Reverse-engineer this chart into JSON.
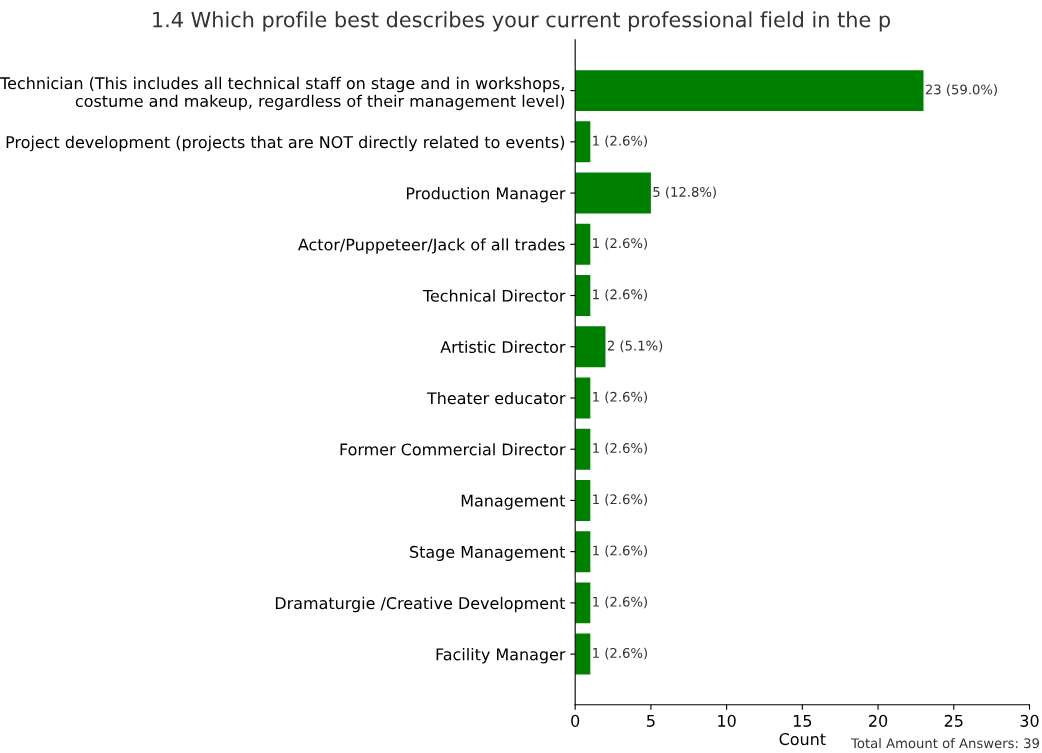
{
  "chart_data": {
    "type": "bar",
    "orientation": "horizontal",
    "title": "1.4 Which profile best describes your current professional field in the p",
    "xlabel": "Count",
    "categories": [
      "Technician (This includes all technical staff on stage and in workshops,\ncostume and makeup, regardless of their management level)",
      "Project development (projects that are NOT directly related to events)",
      "Production Manager",
      "Actor/Puppeteer/Jack of all trades",
      "Technical Director",
      "Artistic Director",
      "Theater educator",
      "Former Commercial Director",
      "Management",
      "Stage Management",
      "Dramaturgie /Creative Development",
      "Facility Manager"
    ],
    "values": [
      23,
      1,
      5,
      1,
      1,
      2,
      1,
      1,
      1,
      1,
      1,
      1
    ],
    "value_labels": [
      "23 (59.0%)",
      "1 (2.6%)",
      "5 (12.8%)",
      "1 (2.6%)",
      "1 (2.6%)",
      "2 (5.1%)",
      "1 (2.6%)",
      "1 (2.6%)",
      "1 (2.6%)",
      "1 (2.6%)",
      "1 (2.6%)",
      "1 (2.6%)"
    ],
    "color": "#008000",
    "xlim": [
      0,
      30
    ],
    "xticks": [
      0,
      5,
      10,
      15,
      20,
      25,
      30
    ],
    "grid": false,
    "legend": false,
    "annotations": [
      "Total Amount of Answers: 39"
    ]
  }
}
